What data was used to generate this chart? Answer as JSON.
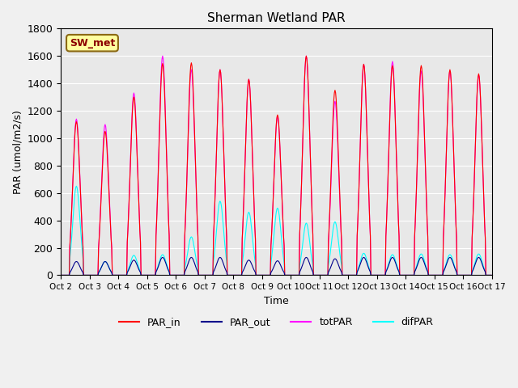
{
  "title": "Sherman Wetland PAR",
  "xlabel": "Time",
  "ylabel": "PAR (umol/m2/s)",
  "ylim": [
    0,
    1800
  ],
  "annotation_text": "SW_met",
  "background_color": "#e8e8e8",
  "fig_background": "#f0f0f0",
  "colors": {
    "PAR_in": "#ff0000",
    "PAR_out": "#00008b",
    "totPAR": "#ff00ff",
    "difPAR": "#00ffff"
  },
  "tick_labels": [
    "Oct 2",
    "Oct 3",
    "Oct 4",
    "Oct 5",
    "Oct 6",
    "Oct 7",
    "Oct 8",
    "Oct 9",
    "Oct 10",
    "Oct 11",
    "Oct 12",
    "Oct 13",
    "Oct 14",
    "Oct 15",
    "Oct 16",
    "Oct 17"
  ],
  "n_days": 15,
  "daily_peaks": {
    "PAR_in": [
      1120,
      1050,
      1300,
      1545,
      1550,
      1500,
      1430,
      1170,
      1600,
      1350,
      1540,
      1530,
      1530,
      1500,
      1470
    ],
    "totPAR": [
      1140,
      1100,
      1330,
      1600,
      1500,
      1500,
      1430,
      1160,
      1600,
      1270,
      1540,
      1560,
      1490,
      1490,
      1460
    ],
    "PAR_out": [
      100,
      100,
      110,
      130,
      130,
      130,
      110,
      105,
      130,
      120,
      130,
      130,
      130,
      130,
      130
    ],
    "difPAR": [
      650,
      100,
      145,
      150,
      280,
      540,
      460,
      490,
      380,
      390,
      160,
      150,
      155,
      150,
      155
    ]
  },
  "yticks": [
    0,
    200,
    400,
    600,
    800,
    1000,
    1200,
    1400,
    1600,
    1800
  ],
  "sunrise": 7.0,
  "sunset": 19.0
}
